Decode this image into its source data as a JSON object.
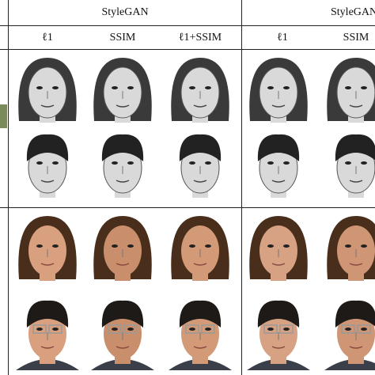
{
  "header": {
    "groups": [
      "StyleGAN",
      "StyleGAN"
    ]
  },
  "columns": [
    "ℓ1",
    "SSIM",
    "ℓ1+SSIM",
    "ℓ1",
    "SSIM"
  ]
}
